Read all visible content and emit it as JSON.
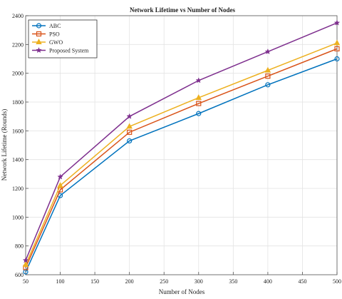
{
  "chart_data": {
    "type": "line",
    "title": "Network Lifetime vs Number of Nodes",
    "xlabel": "Number of Nodes",
    "ylabel": "Network Lifetime (Rounds)",
    "xlim": [
      50,
      500
    ],
    "ylim": [
      600,
      2400
    ],
    "xticks": [
      50,
      100,
      150,
      200,
      250,
      300,
      350,
      400,
      450,
      500
    ],
    "yticks": [
      600,
      800,
      1000,
      1200,
      1400,
      1600,
      1800,
      2000,
      2200,
      2400
    ],
    "x": [
      50,
      100,
      200,
      300,
      400,
      500
    ],
    "grid": true,
    "legend_position": "top-left",
    "series": [
      {
        "name": "ABC",
        "color": "#0072bd",
        "marker": "circle",
        "values": [
          620,
          1150,
          1530,
          1720,
          1920,
          2100
        ]
      },
      {
        "name": "PSO",
        "color": "#d95319",
        "marker": "square",
        "values": [
          650,
          1190,
          1590,
          1790,
          1980,
          2170
        ]
      },
      {
        "name": "GWO",
        "color": "#edb120",
        "marker": "triangle",
        "values": [
          670,
          1220,
          1630,
          1830,
          2020,
          2210
        ]
      },
      {
        "name": "Proposed System",
        "color": "#7e2f8e",
        "marker": "star",
        "values": [
          700,
          1280,
          1700,
          1950,
          2150,
          2350
        ]
      }
    ]
  }
}
